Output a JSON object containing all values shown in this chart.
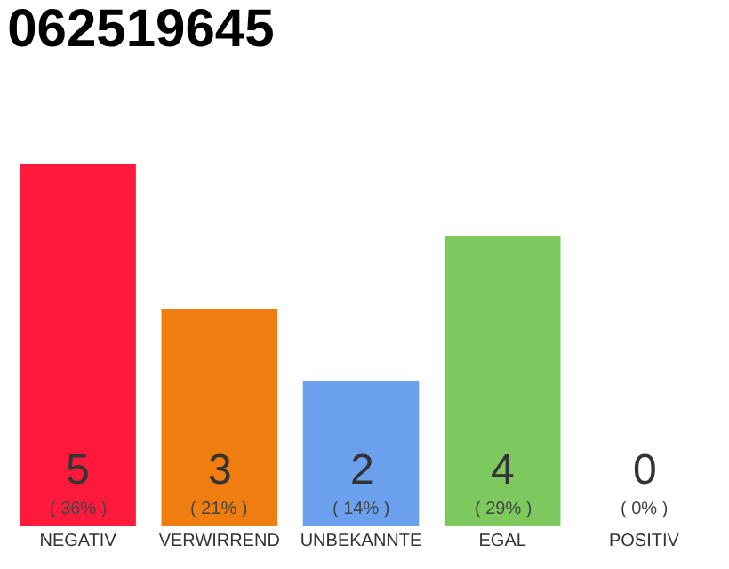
{
  "chart_data": {
    "type": "bar",
    "title": "062519645",
    "categories": [
      "NEGATIV",
      "VERWIRREND",
      "UNBEKANNTE",
      "EGAL",
      "POSITIV"
    ],
    "values": [
      5,
      3,
      2,
      4,
      0
    ],
    "colors": [
      "#ff1a3c",
      "#f07d0f",
      "#6aa0ee",
      "#7dc95e",
      "#cccccc"
    ],
    "value_labels": [
      "5\n( 36% )",
      "3\n( 21% )",
      "2\n( 14% )",
      "4\n( 29% )",
      "0\n( 0% )"
    ],
    "grid": false
  }
}
